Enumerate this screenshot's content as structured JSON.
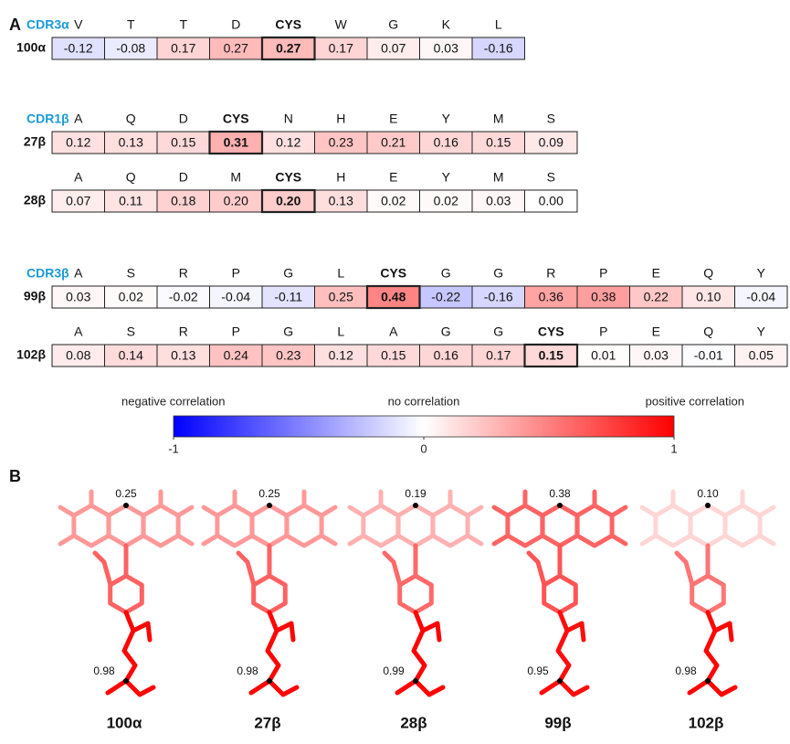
{
  "panel_a": {
    "label": "A",
    "groups": [
      {
        "name": "CDR3α",
        "rows": [
          {
            "residues": [
              "V",
              "T",
              "T",
              "D",
              "CYS",
              "W",
              "G",
              "K",
              "L"
            ],
            "name": "100α",
            "values": [
              "-0.12",
              "-0.08",
              "0.17",
              "0.27",
              "0.27",
              "0.17",
              "0.07",
              "0.03",
              "-0.16"
            ]
          }
        ]
      },
      {
        "name": "CDR1β",
        "rows": [
          {
            "residues": [
              "A",
              "Q",
              "D",
              "CYS",
              "N",
              "H",
              "E",
              "Y",
              "M",
              "S"
            ],
            "name": "27β",
            "values": [
              "0.12",
              "0.13",
              "0.15",
              "0.31",
              "0.12",
              "0.23",
              "0.21",
              "0.16",
              "0.15",
              "0.09"
            ]
          },
          {
            "residues": [
              "A",
              "Q",
              "D",
              "M",
              "CYS",
              "H",
              "E",
              "Y",
              "M",
              "S"
            ],
            "name": "28β",
            "values": [
              "0.07",
              "0.11",
              "0.18",
              "0.20",
              "0.20",
              "0.13",
              "0.02",
              "0.02",
              "0.03",
              "0.00"
            ]
          }
        ]
      },
      {
        "name": "CDR3β",
        "rows": [
          {
            "residues": [
              "A",
              "S",
              "R",
              "P",
              "G",
              "L",
              "CYS",
              "G",
              "G",
              "R",
              "P",
              "E",
              "Q",
              "Y"
            ],
            "name": "99β",
            "values": [
              "0.03",
              "0.02",
              "-0.02",
              "-0.04",
              "-0.11",
              "0.25",
              "0.48",
              "-0.22",
              "-0.16",
              "0.36",
              "0.38",
              "0.22",
              "0.10",
              "-0.04"
            ]
          },
          {
            "residues": [
              "A",
              "S",
              "R",
              "P",
              "G",
              "L",
              "A",
              "G",
              "G",
              "CYS",
              "P",
              "E",
              "Q",
              "Y"
            ],
            "name": "102β",
            "values": [
              "0.08",
              "0.14",
              "0.13",
              "0.24",
              "0.23",
              "0.12",
              "0.15",
              "0.16",
              "0.17",
              "0.15",
              "0.01",
              "0.03",
              "-0.01",
              "0.05"
            ]
          }
        ]
      }
    ],
    "colorbar": {
      "left_label": "negative correlation",
      "center_label": "no correlation",
      "right_label": "positive correlation",
      "ticks": [
        -1,
        0,
        1
      ]
    }
  },
  "panel_b": {
    "label": "B",
    "items": [
      {
        "label": "100α",
        "top": "0.25",
        "bottom": "0.98"
      },
      {
        "label": "27β",
        "top": "0.25",
        "bottom": "0.98"
      },
      {
        "label": "28β",
        "top": "0.19",
        "bottom": "0.99"
      },
      {
        "label": "99β",
        "top": "0.38",
        "bottom": "0.95"
      },
      {
        "label": "102β",
        "top": "0.10",
        "bottom": "0.98"
      }
    ]
  }
}
